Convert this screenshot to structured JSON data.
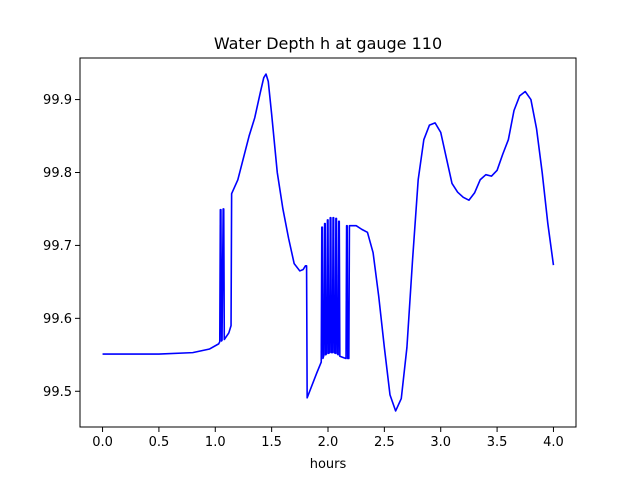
{
  "chart_data": {
    "type": "line",
    "title": "Water Depth h at gauge 110",
    "xlabel": "hours",
    "ylabel": "",
    "xlim": [
      -0.2,
      4.2
    ],
    "ylim": [
      99.451,
      99.957
    ],
    "xticks": [
      0.0,
      0.5,
      1.0,
      1.5,
      2.0,
      2.5,
      3.0,
      3.5,
      4.0
    ],
    "xtick_labels": [
      "0.0",
      "0.5",
      "1.0",
      "1.5",
      "2.0",
      "2.5",
      "3.0",
      "3.5",
      "4.0"
    ],
    "yticks": [
      99.5,
      99.6,
      99.7,
      99.8,
      99.9
    ],
    "ytick_labels": [
      "99.5",
      "99.6",
      "99.7",
      "99.8",
      "99.9"
    ],
    "grid": false,
    "legend": "none",
    "series": [
      {
        "color": "#0000ff",
        "points": [
          [
            0.0,
            99.551
          ],
          [
            0.5,
            99.551
          ],
          [
            0.8,
            99.553
          ],
          [
            0.95,
            99.558
          ],
          [
            1.03,
            99.565
          ],
          [
            1.04,
            99.568
          ],
          [
            1.045,
            99.749
          ],
          [
            1.05,
            99.749
          ],
          [
            1.055,
            99.569
          ],
          [
            1.06,
            99.57
          ],
          [
            1.07,
            99.75
          ],
          [
            1.075,
            99.75
          ],
          [
            1.08,
            99.571
          ],
          [
            1.12,
            99.58
          ],
          [
            1.14,
            99.59
          ],
          [
            1.145,
            99.771
          ],
          [
            1.2,
            99.79
          ],
          [
            1.25,
            99.82
          ],
          [
            1.3,
            99.85
          ],
          [
            1.35,
            99.875
          ],
          [
            1.4,
            99.91
          ],
          [
            1.43,
            99.93
          ],
          [
            1.45,
            99.935
          ],
          [
            1.47,
            99.925
          ],
          [
            1.5,
            99.88
          ],
          [
            1.55,
            99.8
          ],
          [
            1.6,
            99.75
          ],
          [
            1.65,
            99.71
          ],
          [
            1.7,
            99.675
          ],
          [
            1.75,
            99.665
          ],
          [
            1.78,
            99.667
          ],
          [
            1.8,
            99.672
          ],
          [
            1.81,
            99.672
          ],
          [
            1.815,
            99.491
          ],
          [
            1.85,
            99.505
          ],
          [
            1.9,
            99.525
          ],
          [
            1.94,
            99.54
          ],
          [
            1.945,
            99.725
          ],
          [
            1.95,
            99.725
          ],
          [
            1.955,
            99.545
          ],
          [
            1.965,
            99.55
          ],
          [
            1.97,
            99.73
          ],
          [
            1.975,
            99.73
          ],
          [
            1.98,
            99.55
          ],
          [
            1.99,
            99.552
          ],
          [
            1.995,
            99.735
          ],
          [
            2.0,
            99.735
          ],
          [
            2.005,
            99.552
          ],
          [
            2.015,
            99.553
          ],
          [
            2.02,
            99.738
          ],
          [
            2.025,
            99.738
          ],
          [
            2.03,
            99.553
          ],
          [
            2.04,
            99.553
          ],
          [
            2.045,
            99.738
          ],
          [
            2.05,
            99.738
          ],
          [
            2.055,
            99.553
          ],
          [
            2.065,
            99.552
          ],
          [
            2.07,
            99.737
          ],
          [
            2.075,
            99.737
          ],
          [
            2.08,
            99.552
          ],
          [
            2.09,
            99.55
          ],
          [
            2.095,
            99.733
          ],
          [
            2.1,
            99.733
          ],
          [
            2.105,
            99.548
          ],
          [
            2.14,
            99.546
          ],
          [
            2.16,
            99.545
          ],
          [
            2.165,
            99.727
          ],
          [
            2.17,
            99.727
          ],
          [
            2.175,
            99.545
          ],
          [
            2.185,
            99.545
          ],
          [
            2.19,
            99.727
          ],
          [
            2.25,
            99.727
          ],
          [
            2.3,
            99.722
          ],
          [
            2.35,
            99.718
          ],
          [
            2.4,
            99.69
          ],
          [
            2.45,
            99.63
          ],
          [
            2.5,
            99.56
          ],
          [
            2.55,
            99.495
          ],
          [
            2.6,
            99.473
          ],
          [
            2.65,
            99.49
          ],
          [
            2.7,
            99.56
          ],
          [
            2.75,
            99.68
          ],
          [
            2.8,
            99.79
          ],
          [
            2.85,
            99.845
          ],
          [
            2.9,
            99.865
          ],
          [
            2.95,
            99.868
          ],
          [
            3.0,
            99.855
          ],
          [
            3.05,
            99.82
          ],
          [
            3.1,
            99.785
          ],
          [
            3.15,
            99.773
          ],
          [
            3.2,
            99.766
          ],
          [
            3.25,
            99.762
          ],
          [
            3.3,
            99.772
          ],
          [
            3.35,
            99.79
          ],
          [
            3.4,
            99.797
          ],
          [
            3.45,
            99.795
          ],
          [
            3.5,
            99.803
          ],
          [
            3.55,
            99.825
          ],
          [
            3.6,
            99.845
          ],
          [
            3.65,
            99.885
          ],
          [
            3.7,
            99.905
          ],
          [
            3.75,
            99.911
          ],
          [
            3.8,
            99.9
          ],
          [
            3.85,
            99.86
          ],
          [
            3.9,
            99.8
          ],
          [
            3.95,
            99.73
          ],
          [
            4.0,
            99.673
          ]
        ]
      }
    ]
  }
}
